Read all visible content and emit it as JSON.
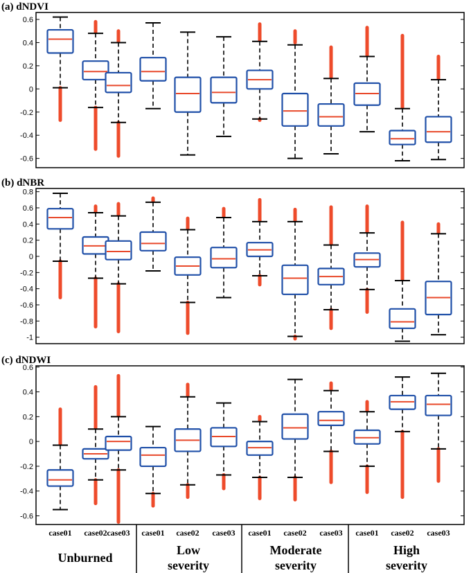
{
  "chart_data": [
    {
      "type": "box",
      "title": "(a) dNDVI",
      "categories": [
        "case01",
        "case02",
        "case03",
        "case01",
        "case02",
        "case03",
        "case01",
        "case02",
        "case03",
        "case01",
        "case02",
        "case03"
      ],
      "groups": [
        {
          "lines": [
            "Unburned"
          ]
        },
        {
          "lines": [
            "Low",
            "severity"
          ]
        },
        {
          "lines": [
            "Moderate",
            "severity"
          ]
        },
        {
          "lines": [
            "High",
            "severity"
          ]
        }
      ],
      "ylim": [
        -0.68,
        0.66
      ],
      "yticks": [
        {
          "v": 0.6,
          "t": "0.6"
        },
        {
          "v": 0.4,
          "t": "0.4"
        },
        {
          "v": 0.2,
          "t": "0.2"
        },
        {
          "v": 0,
          "t": "0"
        },
        {
          "v": -0.2,
          "t": "-0.2"
        },
        {
          "v": -0.4,
          "t": "-0.4"
        },
        {
          "v": -0.6,
          "t": "-0.6"
        }
      ],
      "boxes": [
        {
          "lw": 0.01,
          "q1": 0.31,
          "med": 0.43,
          "q3": 0.51,
          "uw": 0.62,
          "outHigh": null,
          "outLow": [
            -0.27,
            0.01
          ]
        },
        {
          "lw": -0.16,
          "q1": 0.08,
          "med": 0.15,
          "q3": 0.24,
          "uw": 0.48,
          "outHigh": [
            0.49,
            0.58
          ],
          "outLow": [
            -0.52,
            -0.16
          ]
        },
        {
          "lw": -0.29,
          "q1": -0.03,
          "med": 0.03,
          "q3": 0.14,
          "uw": 0.4,
          "outHigh": [
            0.41,
            0.5
          ],
          "outLow": [
            -0.58,
            -0.29
          ]
        },
        {
          "lw": -0.17,
          "q1": 0.07,
          "med": 0.15,
          "q3": 0.27,
          "uw": 0.57,
          "outHigh": null,
          "outLow": null
        },
        {
          "lw": -0.57,
          "q1": -0.2,
          "med": -0.04,
          "q3": 0.1,
          "uw": 0.49,
          "outHigh": null,
          "outLow": null
        },
        {
          "lw": -0.41,
          "q1": -0.12,
          "med": -0.03,
          "q3": 0.1,
          "uw": 0.45,
          "outHigh": null,
          "outLow": null
        },
        {
          "lw": -0.26,
          "q1": 0.0,
          "med": 0.08,
          "q3": 0.16,
          "uw": 0.41,
          "outHigh": [
            0.42,
            0.56
          ],
          "outLow": [
            -0.27,
            -0.26
          ]
        },
        {
          "lw": -0.6,
          "q1": -0.32,
          "med": -0.19,
          "q3": -0.04,
          "uw": 0.38,
          "outHigh": [
            0.4,
            0.5
          ],
          "outLow": null
        },
        {
          "lw": -0.56,
          "q1": -0.32,
          "med": -0.24,
          "q3": -0.13,
          "uw": 0.09,
          "outHigh": [
            0.1,
            0.36
          ],
          "outLow": null
        },
        {
          "lw": -0.37,
          "q1": -0.14,
          "med": -0.04,
          "q3": 0.05,
          "uw": 0.28,
          "outHigh": [
            0.29,
            0.53
          ],
          "outLow": null
        },
        {
          "lw": -0.62,
          "q1": -0.48,
          "med": -0.43,
          "q3": -0.36,
          "uw": -0.17,
          "outHigh": [
            -0.16,
            0.46
          ],
          "outLow": null
        },
        {
          "lw": -0.61,
          "q1": -0.46,
          "med": -0.37,
          "q3": -0.24,
          "uw": 0.08,
          "outHigh": [
            0.09,
            0.28
          ],
          "outLow": null
        }
      ]
    },
    {
      "type": "box",
      "title": "(b) dNBR",
      "ylim": [
        -1.08,
        0.84
      ],
      "yticks": [
        {
          "v": 0.8,
          "t": "0.8"
        },
        {
          "v": 0.6,
          "t": "0.6"
        },
        {
          "v": 0.4,
          "t": "0.4"
        },
        {
          "v": 0.2,
          "t": "0.2"
        },
        {
          "v": 0,
          "t": "0"
        },
        {
          "v": -0.2,
          "t": "-0.2"
        },
        {
          "v": -0.4,
          "t": "-0.4"
        },
        {
          "v": -0.6,
          "t": "-0.6"
        },
        {
          "v": -0.8,
          "t": "-0.8"
        },
        {
          "v": -1,
          "t": "-1"
        }
      ],
      "boxes": [
        {
          "lw": -0.06,
          "q1": 0.34,
          "med": 0.48,
          "q3": 0.59,
          "uw": 0.78,
          "outHigh": null,
          "outLow": [
            -0.51,
            -0.06
          ]
        },
        {
          "lw": -0.27,
          "q1": 0.03,
          "med": 0.13,
          "q3": 0.24,
          "uw": 0.54,
          "outHigh": [
            0.55,
            0.62
          ],
          "outLow": [
            -0.87,
            -0.27
          ]
        },
        {
          "lw": -0.34,
          "q1": -0.04,
          "med": 0.06,
          "q3": 0.19,
          "uw": 0.5,
          "outHigh": [
            0.51,
            0.65
          ],
          "outLow": [
            -0.93,
            -0.34
          ]
        },
        {
          "lw": -0.18,
          "q1": 0.07,
          "med": 0.16,
          "q3": 0.3,
          "uw": 0.67,
          "outHigh": [
            0.68,
            0.72
          ],
          "outLow": null
        },
        {
          "lw": -0.57,
          "q1": -0.23,
          "med": -0.12,
          "q3": -0.01,
          "uw": 0.33,
          "outHigh": [
            0.34,
            0.47
          ],
          "outLow": [
            -0.95,
            -0.57
          ]
        },
        {
          "lw": -0.51,
          "q1": -0.14,
          "med": -0.03,
          "q3": 0.11,
          "uw": 0.48,
          "outHigh": [
            0.49,
            0.59
          ],
          "outLow": null
        },
        {
          "lw": -0.24,
          "q1": 0.0,
          "med": 0.08,
          "q3": 0.17,
          "uw": 0.43,
          "outHigh": [
            0.44,
            0.7
          ],
          "outLow": [
            -0.35,
            -0.24
          ]
        },
        {
          "lw": -0.99,
          "q1": -0.47,
          "med": -0.27,
          "q3": -0.11,
          "uw": 0.43,
          "outHigh": [
            0.44,
            0.58
          ],
          "outLow": [
            -1.02,
            -0.99
          ]
        },
        {
          "lw": -0.66,
          "q1": -0.35,
          "med": -0.25,
          "q3": -0.15,
          "uw": 0.14,
          "outHigh": [
            0.15,
            0.61
          ],
          "outLow": [
            -0.89,
            -0.66
          ]
        },
        {
          "lw": -0.41,
          "q1": -0.13,
          "med": -0.04,
          "q3": 0.04,
          "uw": 0.29,
          "outHigh": [
            0.3,
            0.62
          ],
          "outLow": [
            -0.69,
            -0.41
          ]
        },
        {
          "lw": -1.05,
          "q1": -0.89,
          "med": -0.81,
          "q3": -0.65,
          "uw": -0.3,
          "outHigh": [
            -0.29,
            0.42
          ],
          "outLow": null
        },
        {
          "lw": -0.97,
          "q1": -0.72,
          "med": -0.51,
          "q3": -0.31,
          "uw": 0.28,
          "outHigh": [
            0.29,
            0.4
          ],
          "outLow": null
        }
      ]
    },
    {
      "type": "box",
      "title": "(c) dNDWI",
      "ylim": [
        -0.67,
        0.61
      ],
      "yticks": [
        {
          "v": 0.6,
          "t": "0.6"
        },
        {
          "v": 0.4,
          "t": "0.4"
        },
        {
          "v": 0.2,
          "t": "0.2"
        },
        {
          "v": 0,
          "t": "0"
        },
        {
          "v": -0.2,
          "t": "-0.2"
        },
        {
          "v": -0.4,
          "t": "-0.4"
        },
        {
          "v": -0.6,
          "t": "-0.6"
        }
      ],
      "boxes": [
        {
          "lw": -0.55,
          "q1": -0.36,
          "med": -0.31,
          "q3": -0.23,
          "uw": -0.03,
          "outHigh": [
            -0.02,
            0.26
          ],
          "outLow": null
        },
        {
          "lw": -0.31,
          "q1": -0.14,
          "med": -0.1,
          "q3": -0.06,
          "uw": 0.1,
          "outHigh": [
            0.11,
            0.44
          ],
          "outLow": [
            -0.5,
            -0.31
          ]
        },
        {
          "lw": -0.23,
          "q1": -0.07,
          "med": 0.0,
          "q3": 0.04,
          "uw": 0.2,
          "outHigh": [
            0.21,
            0.53
          ],
          "outLow": [
            -0.65,
            -0.23
          ]
        },
        {
          "lw": -0.42,
          "q1": -0.2,
          "med": -0.11,
          "q3": -0.05,
          "uw": 0.12,
          "outHigh": null,
          "outLow": [
            -0.52,
            -0.42
          ]
        },
        {
          "lw": -0.35,
          "q1": -0.08,
          "med": 0.01,
          "q3": 0.1,
          "uw": 0.36,
          "outHigh": [
            0.37,
            0.46
          ],
          "outLow": [
            -0.45,
            -0.35
          ]
        },
        {
          "lw": -0.27,
          "q1": -0.04,
          "med": 0.04,
          "q3": 0.11,
          "uw": 0.31,
          "outHigh": null,
          "outLow": [
            -0.38,
            -0.27
          ]
        },
        {
          "lw": -0.29,
          "q1": -0.11,
          "med": -0.05,
          "q3": 0.0,
          "uw": 0.16,
          "outHigh": [
            0.17,
            0.2
          ],
          "outLow": [
            -0.46,
            -0.29
          ]
        },
        {
          "lw": -0.29,
          "q1": 0.02,
          "med": 0.11,
          "q3": 0.22,
          "uw": 0.5,
          "outHigh": null,
          "outLow": [
            -0.47,
            -0.29
          ]
        },
        {
          "lw": -0.08,
          "q1": 0.13,
          "med": 0.17,
          "q3": 0.24,
          "uw": 0.41,
          "outHigh": [
            0.42,
            0.47
          ],
          "outLow": [
            -0.33,
            -0.08
          ]
        },
        {
          "lw": -0.2,
          "q1": -0.02,
          "med": 0.03,
          "q3": 0.09,
          "uw": 0.24,
          "outHigh": [
            0.25,
            0.32
          ],
          "outLow": [
            -0.41,
            -0.2
          ]
        },
        {
          "lw": 0.08,
          "q1": 0.26,
          "med": 0.32,
          "q3": 0.37,
          "uw": 0.52,
          "outHigh": null,
          "outLow": [
            -0.45,
            0.08
          ]
        },
        {
          "lw": -0.06,
          "q1": 0.21,
          "med": 0.3,
          "q3": 0.37,
          "uw": 0.55,
          "outHigh": null,
          "outLow": [
            -0.32,
            -0.06
          ]
        }
      ]
    }
  ],
  "colors": {
    "box": "#1f4fa8",
    "median": "#e8482a",
    "outlier": "#ee4b2b",
    "whisker": "#000000",
    "frame": "#000000"
  }
}
